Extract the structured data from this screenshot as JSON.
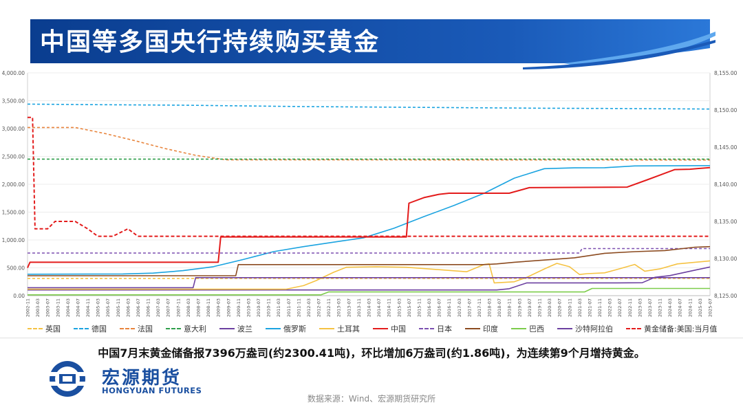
{
  "header": {
    "title": "中国等多国央行持续购买黄金"
  },
  "summary_text": "中国7月末黄金储备报7396万盎司(约2300.41吨)，环比增加6万盎司(约1.86吨)，为连续第9个月增持黄金。",
  "footer": {
    "logo_cn": "宏源期货",
    "logo_en": "HONGYUAN FUTURES",
    "source": "数据来源：Wind、宏源期货研究所"
  },
  "colors": {
    "title_bg": "#0a3d8f",
    "accent_blue": "#1e73c8"
  },
  "chart_data": {
    "type": "line",
    "title": "",
    "xlabel": "",
    "ylabel": "",
    "ylim": [
      0,
      4000
    ],
    "y2lim": [
      8125,
      8155
    ],
    "yticks": [
      "0.00",
      "500.00",
      "1,000.00",
      "1,500.00",
      "2,000.00",
      "2,500.00",
      "3,000.00",
      "3,500.00",
      "4,000.00"
    ],
    "y2ticks": [
      "8,125.00",
      "8,130.00",
      "8,135.00",
      "8,140.00",
      "8,145.00",
      "8,150.00",
      "8,155.00"
    ],
    "xticks": [
      "2002-11",
      "2003-03",
      "2003-07",
      "2003-11",
      "2004-03",
      "2004-07",
      "2004-11",
      "2005-03",
      "2005-07",
      "2005-11",
      "2006-03",
      "2006-07",
      "2006-11",
      "2007-03",
      "2007-07",
      "2007-11",
      "2008-03",
      "2008-07",
      "2008-11",
      "2009-03",
      "2009-07",
      "2009-11",
      "2010-03",
      "2010-07",
      "2010-11",
      "2011-03",
      "2011-07",
      "2011-11",
      "2012-03",
      "2012-07",
      "2012-11",
      "2013-03",
      "2013-07",
      "2013-11",
      "2014-03",
      "2014-07",
      "2014-11",
      "2015-03",
      "2015-07",
      "2015-11",
      "2016-03",
      "2016-07",
      "2016-11",
      "2017-03",
      "2017-07",
      "2017-11",
      "2018-03",
      "2018-07",
      "2018-11",
      "2019-03",
      "2019-07",
      "2019-11",
      "2020-03",
      "2020-07",
      "2020-11",
      "2021-03",
      "2021-07",
      "2021-11",
      "2022-03",
      "2022-07",
      "2022-11",
      "2023-03",
      "2023-07",
      "2023-11",
      "2024-03",
      "2024-07",
      "2024-11",
      "2025-03",
      "2025-07"
    ],
    "x_range": [
      "2002-11",
      "2025-07"
    ],
    "grid": true,
    "legend_position": "bottom",
    "series": [
      {
        "name": "英国",
        "color": "#f5c242",
        "dash": "4,3",
        "axis": "left",
        "points": [
          [
            "2002-11",
            310
          ],
          [
            "2025-07",
            310
          ]
        ]
      },
      {
        "name": "德国",
        "color": "#1aa3e0",
        "dash": "4,3",
        "axis": "left",
        "points": [
          [
            "2002-11",
            3440
          ],
          [
            "2005-01",
            3430
          ],
          [
            "2008-01",
            3420
          ],
          [
            "2012-01",
            3395
          ],
          [
            "2016-01",
            3380
          ],
          [
            "2020-01",
            3365
          ],
          [
            "2022-06",
            3360
          ],
          [
            "2025-07",
            3350
          ]
        ]
      },
      {
        "name": "法国",
        "color": "#e8843c",
        "dash": "4,3",
        "axis": "left",
        "points": [
          [
            "2002-11",
            3020
          ],
          [
            "2004-06",
            3020
          ],
          [
            "2005-06",
            2910
          ],
          [
            "2006-06",
            2780
          ],
          [
            "2007-06",
            2640
          ],
          [
            "2008-06",
            2520
          ],
          [
            "2009-06",
            2440
          ],
          [
            "2025-07",
            2436
          ]
        ]
      },
      {
        "name": "意大利",
        "color": "#2e9e4a",
        "dash": "4,3",
        "axis": "left",
        "points": [
          [
            "2002-11",
            2452
          ],
          [
            "2025-07",
            2452
          ]
        ]
      },
      {
        "name": "波兰",
        "color": "#6b3fa0",
        "dash": "",
        "axis": "left",
        "points": [
          [
            "2002-11",
            102
          ],
          [
            "2018-06",
            103
          ],
          [
            "2018-11",
            125
          ],
          [
            "2019-06",
            230
          ],
          [
            "2021-12",
            230
          ],
          [
            "2022-06",
            230
          ],
          [
            "2023-04",
            232
          ],
          [
            "2023-09",
            330
          ],
          [
            "2024-03",
            360
          ],
          [
            "2024-12",
            448
          ],
          [
            "2025-07",
            515
          ]
        ]
      },
      {
        "name": "俄罗斯",
        "color": "#1aa3e0",
        "dash": "",
        "axis": "left",
        "points": [
          [
            "2002-11",
            385
          ],
          [
            "2006-01",
            390
          ],
          [
            "2007-01",
            405
          ],
          [
            "2008-01",
            450
          ],
          [
            "2009-01",
            520
          ],
          [
            "2010-01",
            650
          ],
          [
            "2011-01",
            790
          ],
          [
            "2012-01",
            880
          ],
          [
            "2013-01",
            960
          ],
          [
            "2014-01",
            1040
          ],
          [
            "2015-01",
            1210
          ],
          [
            "2016-01",
            1420
          ],
          [
            "2017-01",
            1620
          ],
          [
            "2018-01",
            1840
          ],
          [
            "2019-01",
            2110
          ],
          [
            "2020-01",
            2280
          ],
          [
            "2021-01",
            2295
          ],
          [
            "2022-01",
            2298
          ],
          [
            "2023-01",
            2330
          ],
          [
            "2025-07",
            2335
          ]
        ]
      },
      {
        "name": "土耳其",
        "color": "#f5c242",
        "dash": "",
        "axis": "left",
        "points": [
          [
            "2002-11",
            116
          ],
          [
            "2011-06",
            116
          ],
          [
            "2012-01",
            180
          ],
          [
            "2012-06",
            270
          ],
          [
            "2013-01",
            420
          ],
          [
            "2013-06",
            510
          ],
          [
            "2014-06",
            520
          ],
          [
            "2015-06",
            510
          ],
          [
            "2016-06",
            470
          ],
          [
            "2017-06",
            430
          ],
          [
            "2018-01",
            560
          ],
          [
            "2018-03",
            570
          ],
          [
            "2018-05",
            230
          ],
          [
            "2019-01",
            250
          ],
          [
            "2019-06",
            330
          ],
          [
            "2020-01",
            480
          ],
          [
            "2020-06",
            580
          ],
          [
            "2020-11",
            520
          ],
          [
            "2021-03",
            380
          ],
          [
            "2021-06",
            395
          ],
          [
            "2022-01",
            410
          ],
          [
            "2022-06",
            470
          ],
          [
            "2023-01",
            560
          ],
          [
            "2023-05",
            440
          ],
          [
            "2023-11",
            480
          ],
          [
            "2024-06",
            570
          ],
          [
            "2025-07",
            625
          ]
        ]
      },
      {
        "name": "中国",
        "color": "#e31b1b",
        "dash": "",
        "axis": "left",
        "points": [
          [
            "2002-11",
            500
          ],
          [
            "2002-12",
            600
          ],
          [
            "2009-03",
            600
          ],
          [
            "2009-04",
            1054
          ],
          [
            "2015-06",
            1054
          ],
          [
            "2015-07",
            1660
          ],
          [
            "2016-01",
            1760
          ],
          [
            "2016-07",
            1820
          ],
          [
            "2016-11",
            1840
          ],
          [
            "2018-11",
            1840
          ],
          [
            "2019-07",
            1940
          ],
          [
            "2022-10",
            1950
          ],
          [
            "2023-06",
            2080
          ],
          [
            "2024-05",
            2264
          ],
          [
            "2024-11",
            2270
          ],
          [
            "2025-07",
            2300
          ]
        ]
      },
      {
        "name": "日本",
        "color": "#7b4fb0",
        "dash": "4,3",
        "axis": "left",
        "points": [
          [
            "2002-11",
            765
          ],
          [
            "2021-03",
            765
          ],
          [
            "2021-04",
            846
          ],
          [
            "2025-07",
            846
          ]
        ]
      },
      {
        "name": "印度",
        "color": "#8b4a1f",
        "dash": "",
        "axis": "left",
        "points": [
          [
            "2002-11",
            358
          ],
          [
            "2009-10",
            358
          ],
          [
            "2009-11",
            558
          ],
          [
            "2018-01",
            558
          ],
          [
            "2018-06",
            570
          ],
          [
            "2019-01",
            600
          ],
          [
            "2020-01",
            640
          ],
          [
            "2021-01",
            680
          ],
          [
            "2022-01",
            760
          ],
          [
            "2023-01",
            790
          ],
          [
            "2024-01",
            810
          ],
          [
            "2025-01",
            870
          ],
          [
            "2025-07",
            880
          ]
        ]
      },
      {
        "name": "巴西",
        "color": "#7ccc4a",
        "dash": "",
        "axis": "left",
        "points": [
          [
            "2002-11",
            15
          ],
          [
            "2012-08",
            15
          ],
          [
            "2012-11",
            67
          ],
          [
            "2021-05",
            67
          ],
          [
            "2021-08",
            130
          ],
          [
            "2025-07",
            130
          ]
        ]
      },
      {
        "name": "沙特阿拉伯",
        "color": "#6b3fa0",
        "dash": "",
        "axis": "left",
        "points": [
          [
            "2002-11",
            143
          ],
          [
            "2008-05",
            143
          ],
          [
            "2008-06",
            323
          ],
          [
            "2025-07",
            323
          ]
        ]
      },
      {
        "name": "黄金储备:美国:当月值",
        "color": "#e31b1b",
        "dash": "5,3",
        "axis": "right",
        "points": [
          [
            "2002-11",
            8149
          ],
          [
            "2003-01",
            8149
          ],
          [
            "2003-02",
            8134
          ],
          [
            "2003-07",
            8134
          ],
          [
            "2003-10",
            8135
          ],
          [
            "2004-06",
            8135
          ],
          [
            "2004-11",
            8134
          ],
          [
            "2005-03",
            8133
          ],
          [
            "2005-09",
            8133
          ],
          [
            "2006-03",
            8134
          ],
          [
            "2006-07",
            8133
          ],
          [
            "2025-07",
            8133
          ]
        ]
      }
    ]
  }
}
